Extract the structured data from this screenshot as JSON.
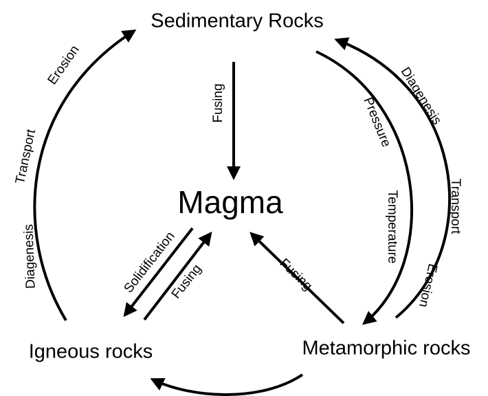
{
  "nodes": [
    {
      "label": "Sedimentary Rocks"
    },
    {
      "label": "Magma"
    },
    {
      "label": "Igneous rocks"
    },
    {
      "label": "Metamorphic rocks"
    }
  ],
  "edges": [
    {
      "labels": [
        "Erosion",
        "Transport",
        "Diagenesis"
      ]
    },
    {
      "labels": [
        "Fusing"
      ]
    },
    {
      "labels": [
        "Pressure",
        "Temperature"
      ]
    },
    {
      "labels": [
        "Diagenesis",
        "Transport",
        "Erosion"
      ]
    },
    {
      "labels": [
        "Solidification"
      ]
    },
    {
      "labels": [
        "Fusing"
      ]
    },
    {
      "labels": [
        "Fusing"
      ]
    }
  ]
}
